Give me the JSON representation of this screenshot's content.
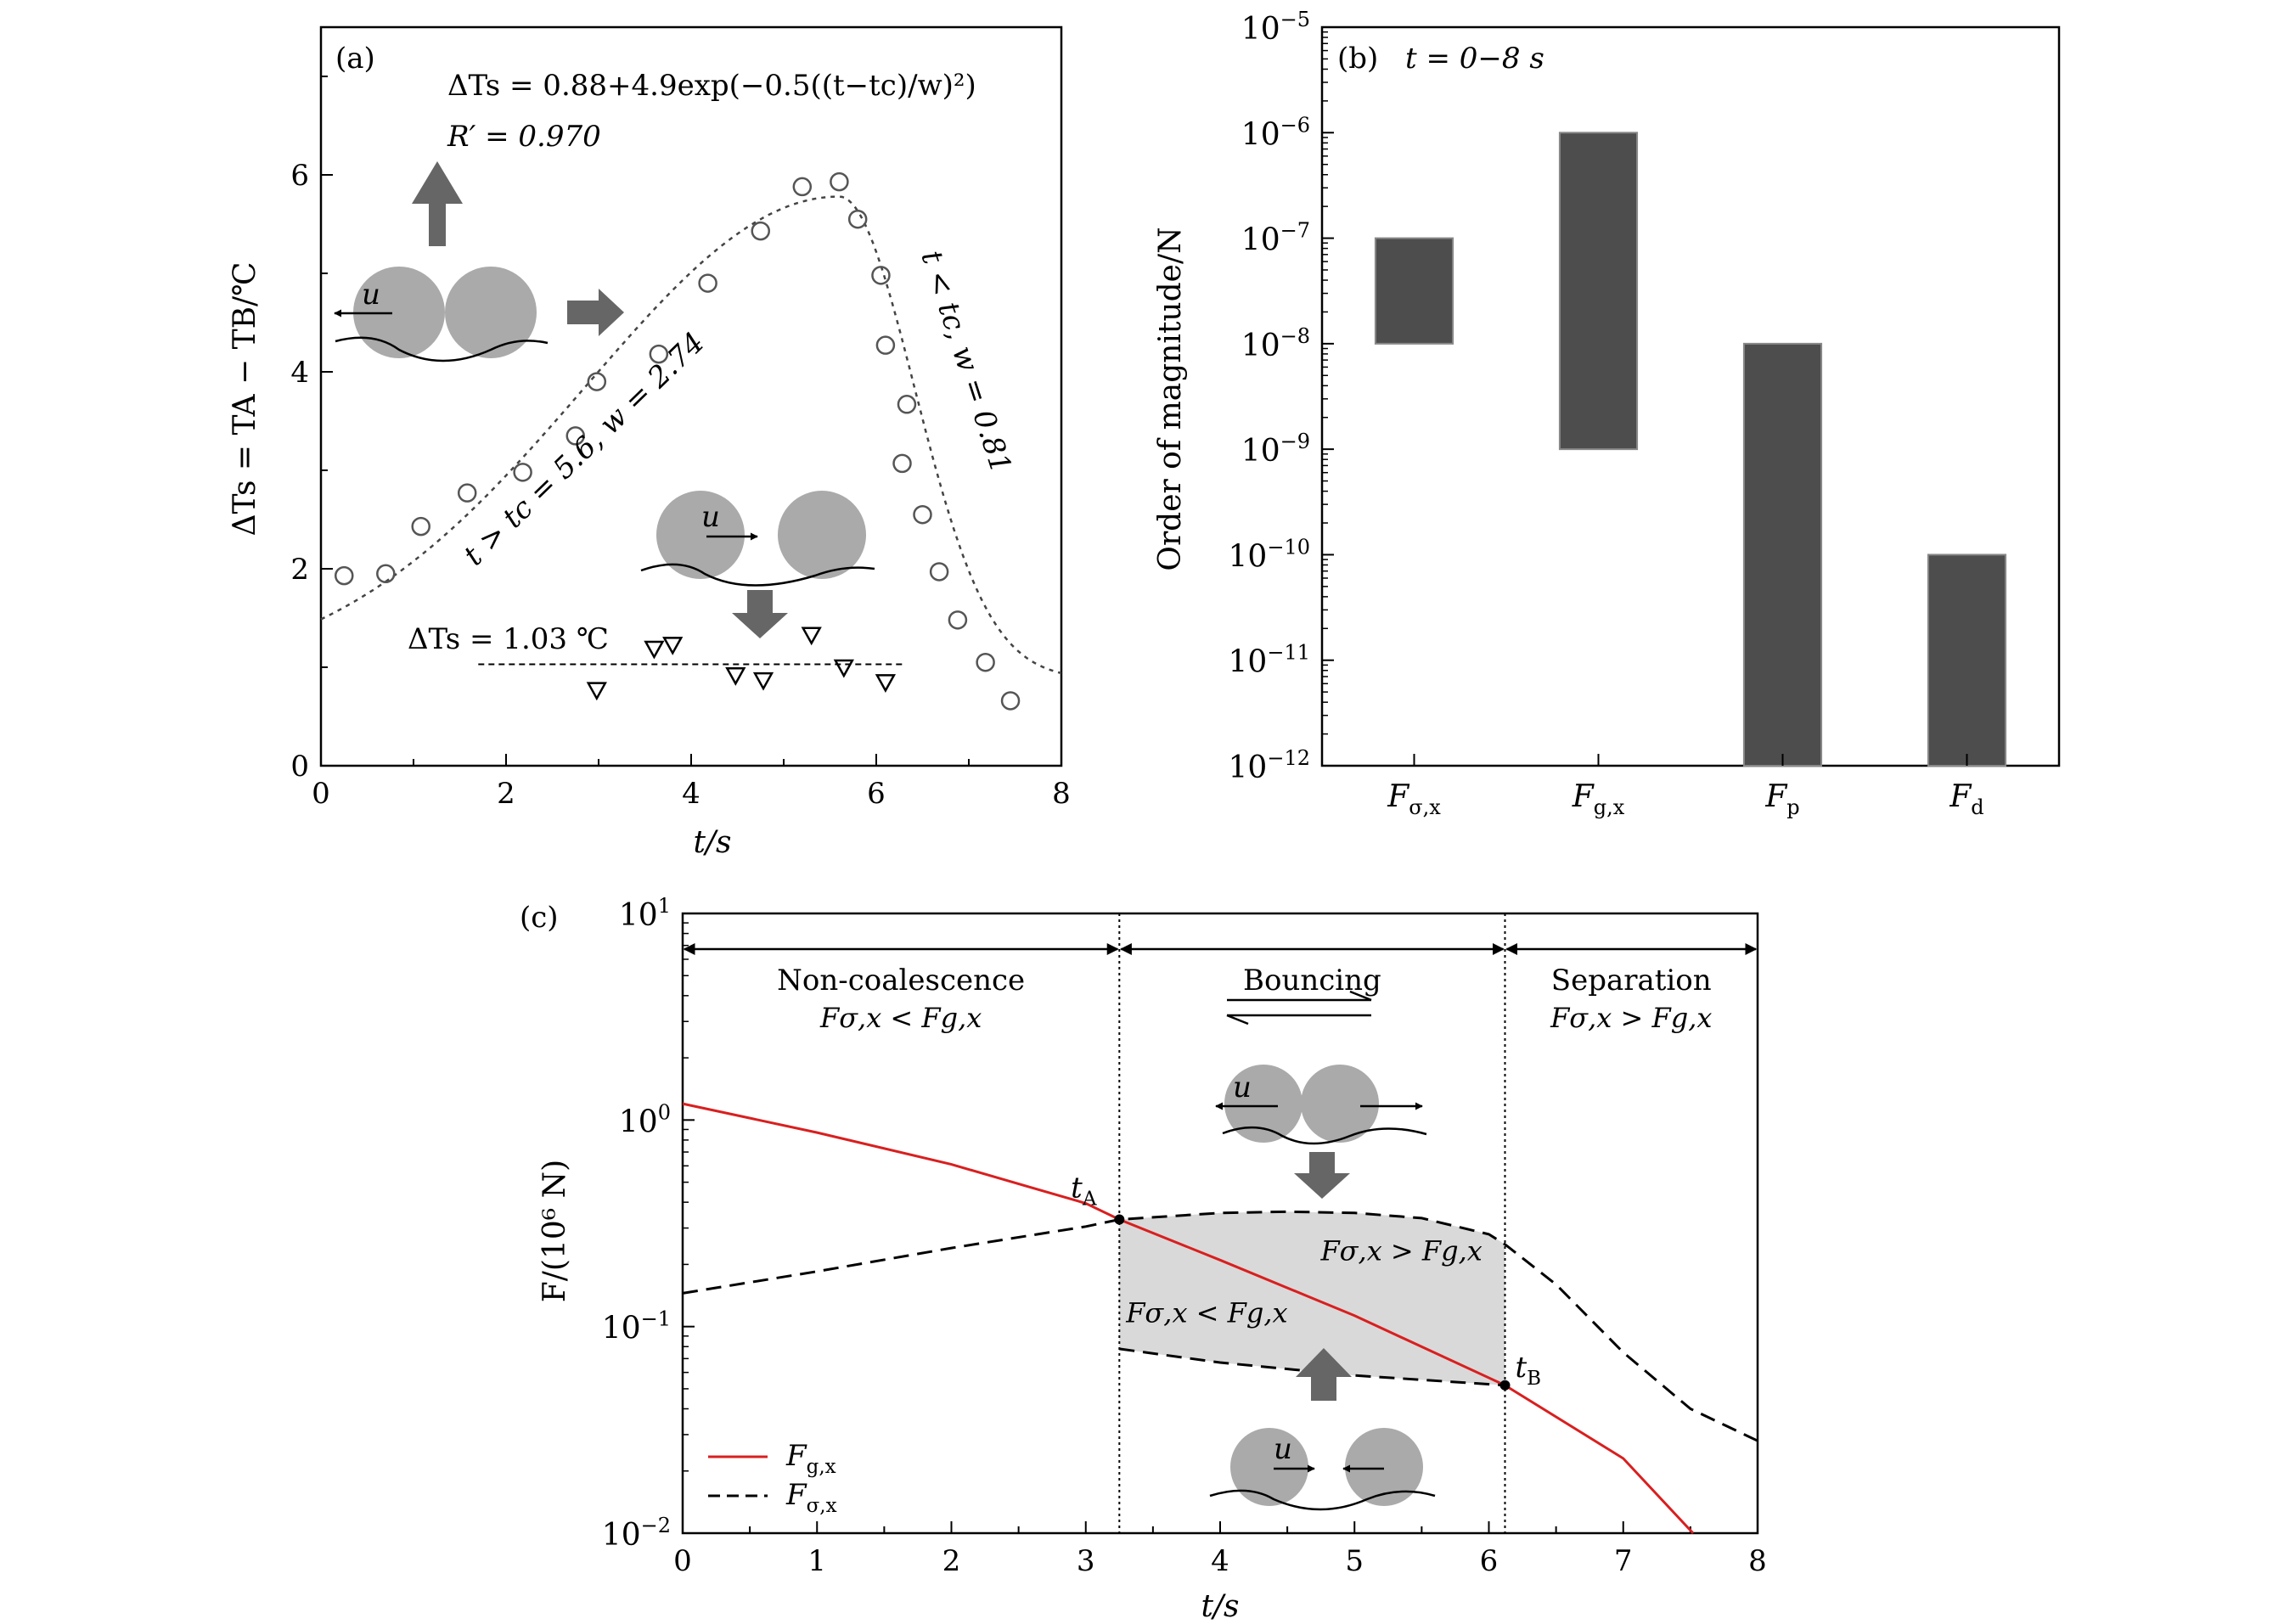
{
  "chart_data": [
    {
      "type": "scatter",
      "panel_label": "(a)",
      "xlabel": "t/s",
      "ylabel": "ΔTs = TA − TB/℃",
      "xlim": [
        0,
        8
      ],
      "ylim": [
        0,
        7.5
      ],
      "x_ticks": [
        "0",
        "2",
        "4",
        "6",
        "8"
      ],
      "y_ticks": [
        "0",
        "2",
        "4",
        "6"
      ],
      "equation": "ΔTs = 0.88+4.9exp(−0.5((t−tc)/w)²)",
      "r_value": "R′ = 0.970",
      "fit_left_label": "t > tc = 5.6, w = 2.74",
      "fit_right_label": "t < tc, w = 0.81",
      "baseline_label": "ΔTs = 1.03 ℃",
      "velocity_symbol": "u",
      "fit": {
        "offset": 0.88,
        "amplitude": 4.9,
        "tc": 5.6,
        "w_left": 2.74,
        "w_right": 0.81
      },
      "series": [
        {
          "name": "circles",
          "x": [
            0.25,
            0.7,
            1.08,
            1.58,
            2.18,
            2.75,
            2.98,
            3.65,
            4.18,
            4.75,
            5.2,
            5.6,
            5.8,
            6.05,
            6.1,
            6.28,
            6.33,
            6.5,
            6.68,
            6.88,
            7.18,
            7.45
          ],
          "y": [
            1.93,
            1.95,
            2.43,
            2.77,
            2.98,
            3.35,
            3.9,
            4.18,
            4.9,
            5.43,
            5.88,
            5.93,
            5.55,
            4.98,
            4.27,
            3.07,
            3.67,
            2.55,
            1.97,
            1.48,
            1.05,
            0.66
          ]
        },
        {
          "name": "triangles",
          "x": [
            2.98,
            3.6,
            3.8,
            4.48,
            4.78,
            5.3,
            5.65,
            6.1
          ],
          "y": [
            0.77,
            1.19,
            1.23,
            0.92,
            0.87,
            1.33,
            1.0,
            0.85
          ]
        }
      ],
      "baseline": {
        "y": 1.03,
        "x_start": 1.7,
        "x_end": 6.3
      }
    },
    {
      "type": "bar",
      "panel_label": "(b)",
      "time_label": "t = 0−8 s",
      "ylabel": "Order of magnitude/N",
      "scale": "log10",
      "ylim_exp": [
        -12,
        -5
      ],
      "y_tick_base": "10",
      "y_tick_exponents": [
        "−5",
        "−6",
        "−7",
        "−8",
        "−9",
        "−10",
        "−11",
        "−12"
      ],
      "categories": [
        {
          "symbol": "F",
          "sub": "σ,x"
        },
        {
          "symbol": "F",
          "sub": "g,x"
        },
        {
          "symbol": "F",
          "sub": "p"
        },
        {
          "symbol": "F",
          "sub": "d"
        }
      ],
      "ranges_exp": [
        [
          -8,
          -7
        ],
        [
          -9,
          -6
        ],
        [
          -12,
          -8
        ],
        [
          -12,
          -10
        ]
      ],
      "bar_color": "#4d4d4d"
    },
    {
      "type": "line",
      "panel_label": "(c)",
      "xlabel": "t/s",
      "ylabel": "F/(10⁶ N)",
      "scale_y": "log10",
      "xlim": [
        0,
        8
      ],
      "ylim_exp": [
        -2,
        1
      ],
      "x_ticks": [
        "0",
        "1",
        "2",
        "3",
        "4",
        "5",
        "6",
        "7",
        "8"
      ],
      "y_tick_base": "10",
      "y_tick_exponents": [
        "1",
        "0",
        "−1",
        "−2"
      ],
      "regions": [
        {
          "name": "Non-coalescence",
          "relation": "Fσ,x < Fg,x",
          "x_start": 0,
          "x_end": 3.25
        },
        {
          "name": "Bouncing",
          "relation": "",
          "x_start": 3.25,
          "x_end": 6.12
        },
        {
          "name": "Separation",
          "relation": "Fσ,x > Fg,x",
          "x_start": 6.12,
          "x_end": 8
        }
      ],
      "annotations": {
        "tA": "tA",
        "tB": "tB",
        "upper_relation": "Fσ,x > Fg,x",
        "lower_relation": "Fσ,x < Fg,x"
      },
      "series": [
        {
          "name": "Fg,x",
          "style": "solid",
          "color": "#d91f1f",
          "x": [
            0,
            1,
            2,
            3,
            3.25,
            4,
            5,
            6.12,
            7,
            7.52
          ],
          "y": [
            1.2,
            0.87,
            0.61,
            0.395,
            0.33,
            0.21,
            0.113,
            0.052,
            0.023,
            0.01
          ]
        },
        {
          "name": "Fσ,x upper",
          "style": "dashed",
          "color": "#000000",
          "x": [
            0,
            1,
            2,
            3,
            3.25,
            4,
            4.5,
            5,
            5.5,
            6,
            6.12,
            6.5,
            7,
            7.5,
            8
          ],
          "y": [
            0.145,
            0.185,
            0.24,
            0.305,
            0.33,
            0.355,
            0.36,
            0.355,
            0.335,
            0.28,
            0.25,
            0.16,
            0.075,
            0.04,
            0.028
          ]
        },
        {
          "name": "Fσ,x lower",
          "style": "dashed",
          "color": "#000000",
          "x": [
            3.25,
            4,
            5,
            6.12
          ],
          "y": [
            0.078,
            0.067,
            0.058,
            0.052
          ]
        }
      ],
      "legend": [
        {
          "symbol": "F",
          "sub": "g,x",
          "style": "solid",
          "color": "#d91f1f"
        },
        {
          "symbol": "F",
          "sub": "σ,x",
          "style": "dashed",
          "color": "#000000"
        }
      ],
      "velocity_symbol": "u",
      "shade_color": "#d9d9d9"
    }
  ]
}
